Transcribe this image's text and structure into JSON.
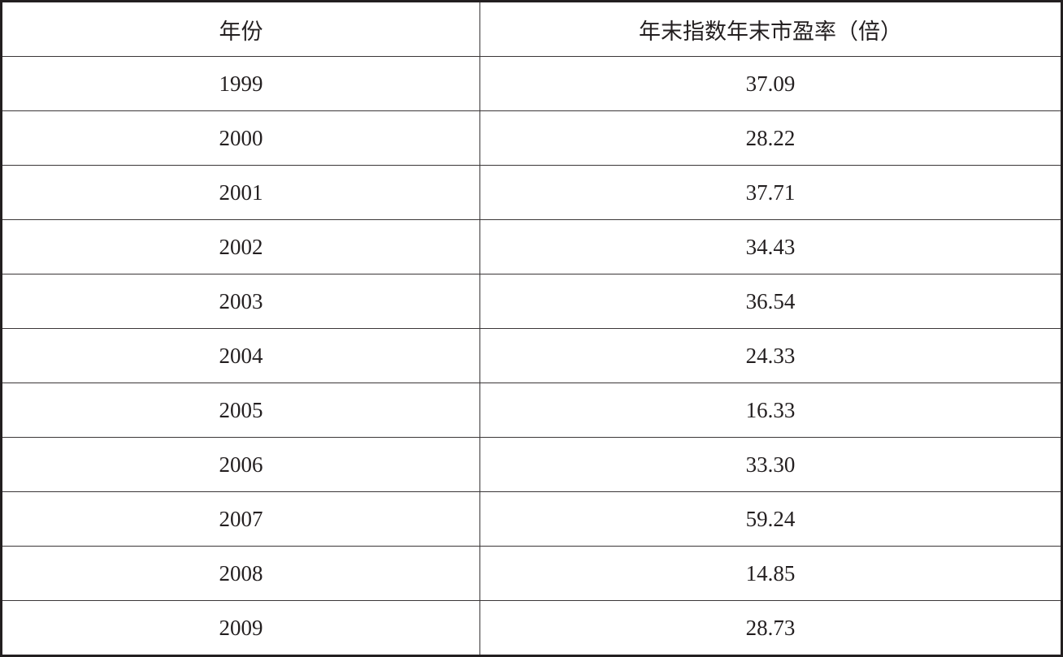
{
  "table": {
    "header": [
      "年份",
      "年末指数年末市盈率（倍）"
    ],
    "rows": [
      [
        "1999",
        "37.09"
      ],
      [
        "2000",
        "28.22"
      ],
      [
        "2001",
        "37.71"
      ],
      [
        "2002",
        "34.43"
      ],
      [
        "2003",
        "36.54"
      ],
      [
        "2004",
        "24.33"
      ],
      [
        "2005",
        "16.33"
      ],
      [
        "2006",
        "33.30"
      ],
      [
        "2007",
        "59.24"
      ],
      [
        "2008",
        "14.85"
      ],
      [
        "2009",
        "28.73"
      ]
    ]
  }
}
